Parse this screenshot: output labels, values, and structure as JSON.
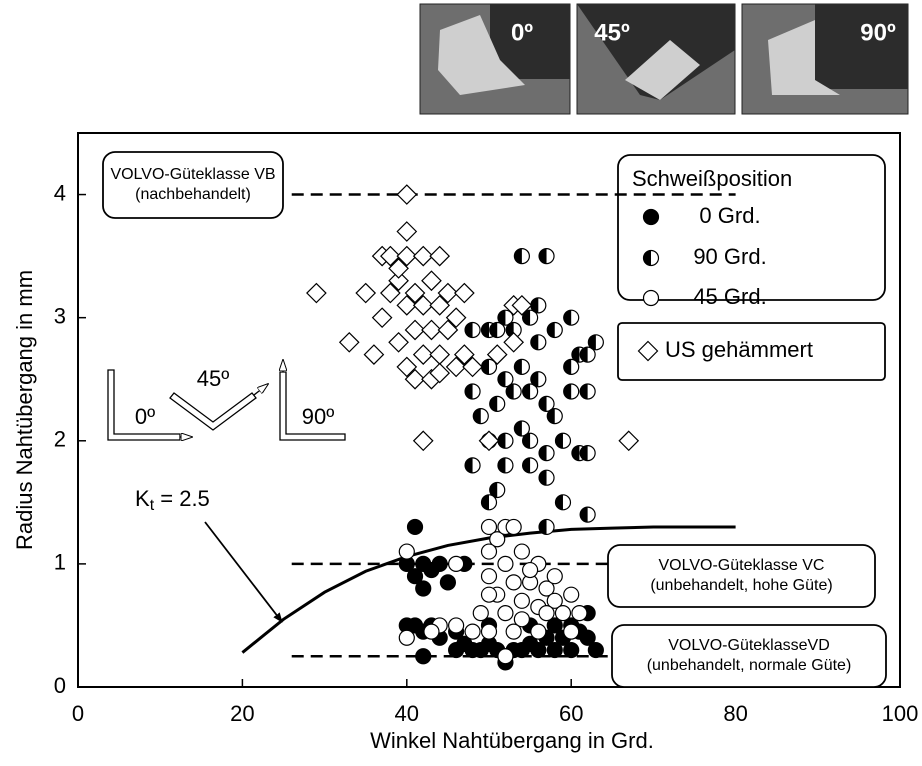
{
  "chart_data": {
    "type": "scatter",
    "xlabel": "Winkel Nahtübergang in Grd.",
    "ylabel": "Radius Nahtübergang in mm",
    "xlim": [
      0,
      100
    ],
    "ylim": [
      0,
      4.5
    ],
    "xticks": [
      0,
      20,
      40,
      60,
      80,
      100
    ],
    "yticks": [
      0,
      1,
      2,
      3,
      4
    ],
    "photo_labels": [
      "0º",
      "45º",
      "90º"
    ],
    "diagram_labels": [
      "0º",
      "45º",
      "90º"
    ],
    "legend_title": "Schweißposition",
    "series": [
      {
        "name": "0 Grd.",
        "marker": "filled",
        "color": "#000000",
        "x": [
          41,
          40,
          41,
          42,
          43,
          44,
          42,
          45,
          47,
          40,
          41,
          42,
          43,
          44,
          46,
          47,
          48,
          49,
          50,
          51,
          52,
          53,
          54,
          55,
          56,
          57,
          58,
          59,
          60,
          61,
          62,
          63,
          42,
          52,
          50,
          55,
          58,
          60,
          62,
          46
        ],
        "y": [
          1.3,
          1.0,
          0.9,
          1.0,
          0.95,
          1.0,
          0.8,
          0.85,
          1.0,
          0.5,
          0.5,
          0.45,
          0.5,
          0.4,
          0.45,
          0.35,
          0.3,
          0.3,
          0.35,
          0.3,
          0.25,
          0.3,
          0.3,
          0.35,
          0.3,
          0.4,
          0.3,
          0.4,
          0.3,
          0.45,
          0.6,
          0.3,
          0.25,
          0.2,
          0.5,
          0.5,
          0.5,
          0.5,
          0.4,
          0.3
        ]
      },
      {
        "name": "90 Grd.",
        "marker": "half",
        "color": "#000000",
        "x": [
          54,
          57,
          48,
          50,
          51,
          52,
          53,
          55,
          56,
          58,
          60,
          61,
          62,
          63,
          48,
          49,
          50,
          52,
          53,
          54,
          55,
          56,
          57,
          58,
          60,
          62,
          50,
          52,
          54,
          55,
          57,
          59,
          61,
          62,
          48,
          52,
          55,
          57,
          59,
          51,
          50,
          57,
          62,
          60,
          56,
          51
        ],
        "y": [
          3.5,
          3.5,
          2.9,
          2.9,
          2.9,
          3.0,
          2.9,
          3.0,
          3.1,
          2.9,
          3.0,
          2.7,
          2.7,
          2.8,
          2.4,
          2.2,
          2.6,
          2.5,
          2.4,
          2.6,
          2.4,
          2.5,
          2.3,
          2.2,
          2.4,
          2.4,
          2.0,
          2.0,
          2.1,
          2.0,
          1.9,
          2.0,
          1.9,
          1.9,
          1.8,
          1.8,
          1.8,
          1.7,
          1.5,
          1.6,
          1.5,
          1.3,
          1.4,
          2.6,
          2.8,
          2.3
        ]
      },
      {
        "name": "45 Grd.",
        "marker": "open",
        "color": "#000000",
        "x": [
          40,
          46,
          50,
          51,
          52,
          53,
          50,
          52,
          54,
          56,
          50,
          53,
          55,
          57,
          51,
          54,
          56,
          58,
          60,
          49,
          52,
          54,
          57,
          59,
          61,
          44,
          46,
          48,
          50,
          53,
          56,
          60,
          40,
          43,
          52,
          55,
          50,
          58
        ],
        "y": [
          1.1,
          1.0,
          1.3,
          1.2,
          1.3,
          1.3,
          1.1,
          1.0,
          1.1,
          1.0,
          0.9,
          0.85,
          0.85,
          0.8,
          0.75,
          0.7,
          0.65,
          0.7,
          0.75,
          0.6,
          0.6,
          0.55,
          0.6,
          0.6,
          0.6,
          0.5,
          0.5,
          0.45,
          0.45,
          0.45,
          0.45,
          0.45,
          0.4,
          0.45,
          0.25,
          0.95,
          0.75,
          0.9
        ]
      },
      {
        "name": "US gehämmert",
        "marker": "diamond",
        "color": "#000000",
        "x": [
          40,
          40,
          29,
          33,
          35,
          36,
          37,
          37,
          38,
          38,
          39,
          39,
          40,
          40,
          40,
          41,
          41,
          41,
          42,
          42,
          42,
          43,
          43,
          43,
          44,
          44,
          44,
          45,
          45,
          46,
          46,
          47,
          47,
          48,
          42,
          50,
          51,
          53,
          53,
          54,
          67,
          44,
          39
        ],
        "y": [
          4.0,
          3.7,
          3.2,
          2.8,
          3.2,
          2.7,
          3.5,
          3.0,
          3.5,
          3.2,
          3.3,
          2.8,
          3.5,
          3.1,
          2.6,
          3.2,
          2.9,
          2.5,
          3.5,
          3.1,
          2.7,
          3.3,
          2.9,
          2.5,
          3.5,
          3.1,
          2.7,
          3.2,
          2.9,
          3.0,
          2.6,
          3.2,
          2.7,
          2.6,
          2.0,
          2.0,
          2.7,
          3.1,
          2.8,
          3.1,
          2.0,
          2.55,
          3.4
        ]
      }
    ],
    "reference_lines": [
      {
        "y": 4,
        "x": [
          26,
          80
        ]
      },
      {
        "y": 1,
        "x": [
          26,
          80
        ]
      },
      {
        "y": 0.25,
        "x": [
          26,
          80
        ]
      }
    ],
    "annotations": [
      {
        "lines": [
          "VOLVO-Güteklasse VB",
          "(nachbehandelt)"
        ]
      },
      {
        "lines": [
          "VOLVO-Güteklasse VC",
          "(unbehandelt, hohe Güte)"
        ]
      },
      {
        "lines": [
          "VOLVO-GüteklasseVD",
          "(unbehandelt, normale Güte)"
        ]
      }
    ],
    "reference_curve": {
      "label": {
        "main": "K",
        "sub": "t",
        "rest": " = 2.5"
      },
      "x": [
        20,
        25,
        30,
        35,
        40,
        45,
        50,
        55,
        60,
        65,
        70,
        75,
        80
      ],
      "y": [
        0.28,
        0.55,
        0.77,
        0.94,
        1.06,
        1.15,
        1.21,
        1.25,
        1.28,
        1.29,
        1.3,
        1.3,
        1.3
      ]
    }
  }
}
